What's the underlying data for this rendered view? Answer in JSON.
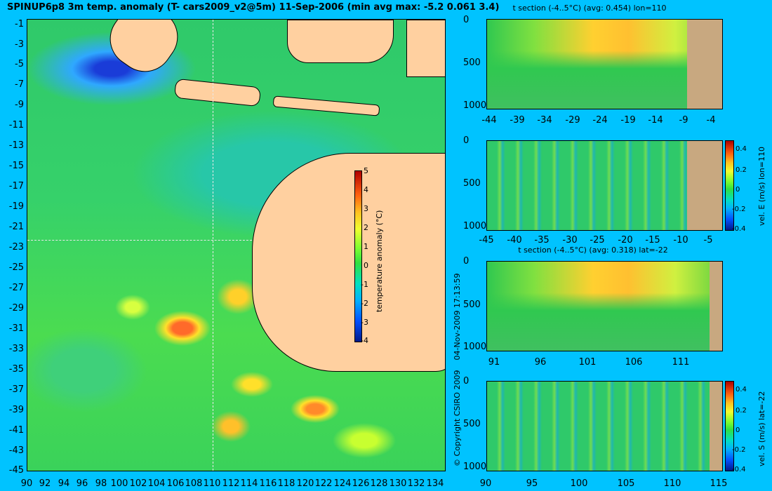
{
  "title": "SPINUP6p8 3m temp. anomaly (T- cars2009_v2@5m) 11-Sep-2006 (min avg max: -5.2 0.061 3.4)",
  "map": {
    "lat_ticks": [
      "-1",
      "-3",
      "-5",
      "-7",
      "-9",
      "-11",
      "-13",
      "-15",
      "-17",
      "-19",
      "-21",
      "-23",
      "-25",
      "-27",
      "-29",
      "-31",
      "-33",
      "-35",
      "-37",
      "-39",
      "-41",
      "-43",
      "-45"
    ],
    "lon_ticks": [
      "90",
      "92",
      "94",
      "96",
      "98",
      "100",
      "102",
      "104",
      "106",
      "108",
      "110",
      "112",
      "114",
      "116",
      "118",
      "120",
      "122",
      "124",
      "126",
      "128",
      "130",
      "132",
      "134"
    ],
    "colorbar_ticks": [
      "5",
      "4",
      "3",
      "2",
      "1",
      "0",
      "-1",
      "-2",
      "-3",
      "-4"
    ],
    "colorbar_label": "temperature anomaly (°C)",
    "section_lon": 110,
    "section_lat": -22
  },
  "panel1": {
    "title": "t section (-4..5°C) (avg: 0.454) lon=110",
    "depth_ticks": [
      "0",
      "500",
      "1000"
    ],
    "x_ticks": [
      "-44",
      "-39",
      "-34",
      "-29",
      "-24",
      "-19",
      "-14",
      "-9",
      "-4"
    ]
  },
  "panel2": {
    "label": "vel. E (m/s) lon=110",
    "depth_ticks": [
      "0",
      "500",
      "1000"
    ],
    "x_ticks": [
      "-45",
      "-40",
      "-35",
      "-30",
      "-25",
      "-20",
      "-15",
      "-10",
      "-5"
    ],
    "cbar_ticks": [
      "0.4",
      "0.2",
      "0",
      "-0.2",
      "-0.4"
    ]
  },
  "panel3": {
    "title": "t section (-4..5°C) (avg: 0.318) lat=-22",
    "depth_ticks": [
      "0",
      "500",
      "1000"
    ],
    "x_ticks": [
      "91",
      "96",
      "101",
      "106",
      "111"
    ]
  },
  "panel4": {
    "label": "vel. S (m/s) lat=-22",
    "depth_ticks": [
      "0",
      "500",
      "1000"
    ],
    "x_ticks": [
      "90",
      "95",
      "100",
      "105",
      "110",
      "115"
    ],
    "cbar_ticks": [
      "0.4",
      "0.2",
      "0",
      "-0.2",
      "-0.4"
    ]
  },
  "timestamp": "04-Nov-2009 17:13:59",
  "copyright": "© Copyright CSIRO 2009"
}
